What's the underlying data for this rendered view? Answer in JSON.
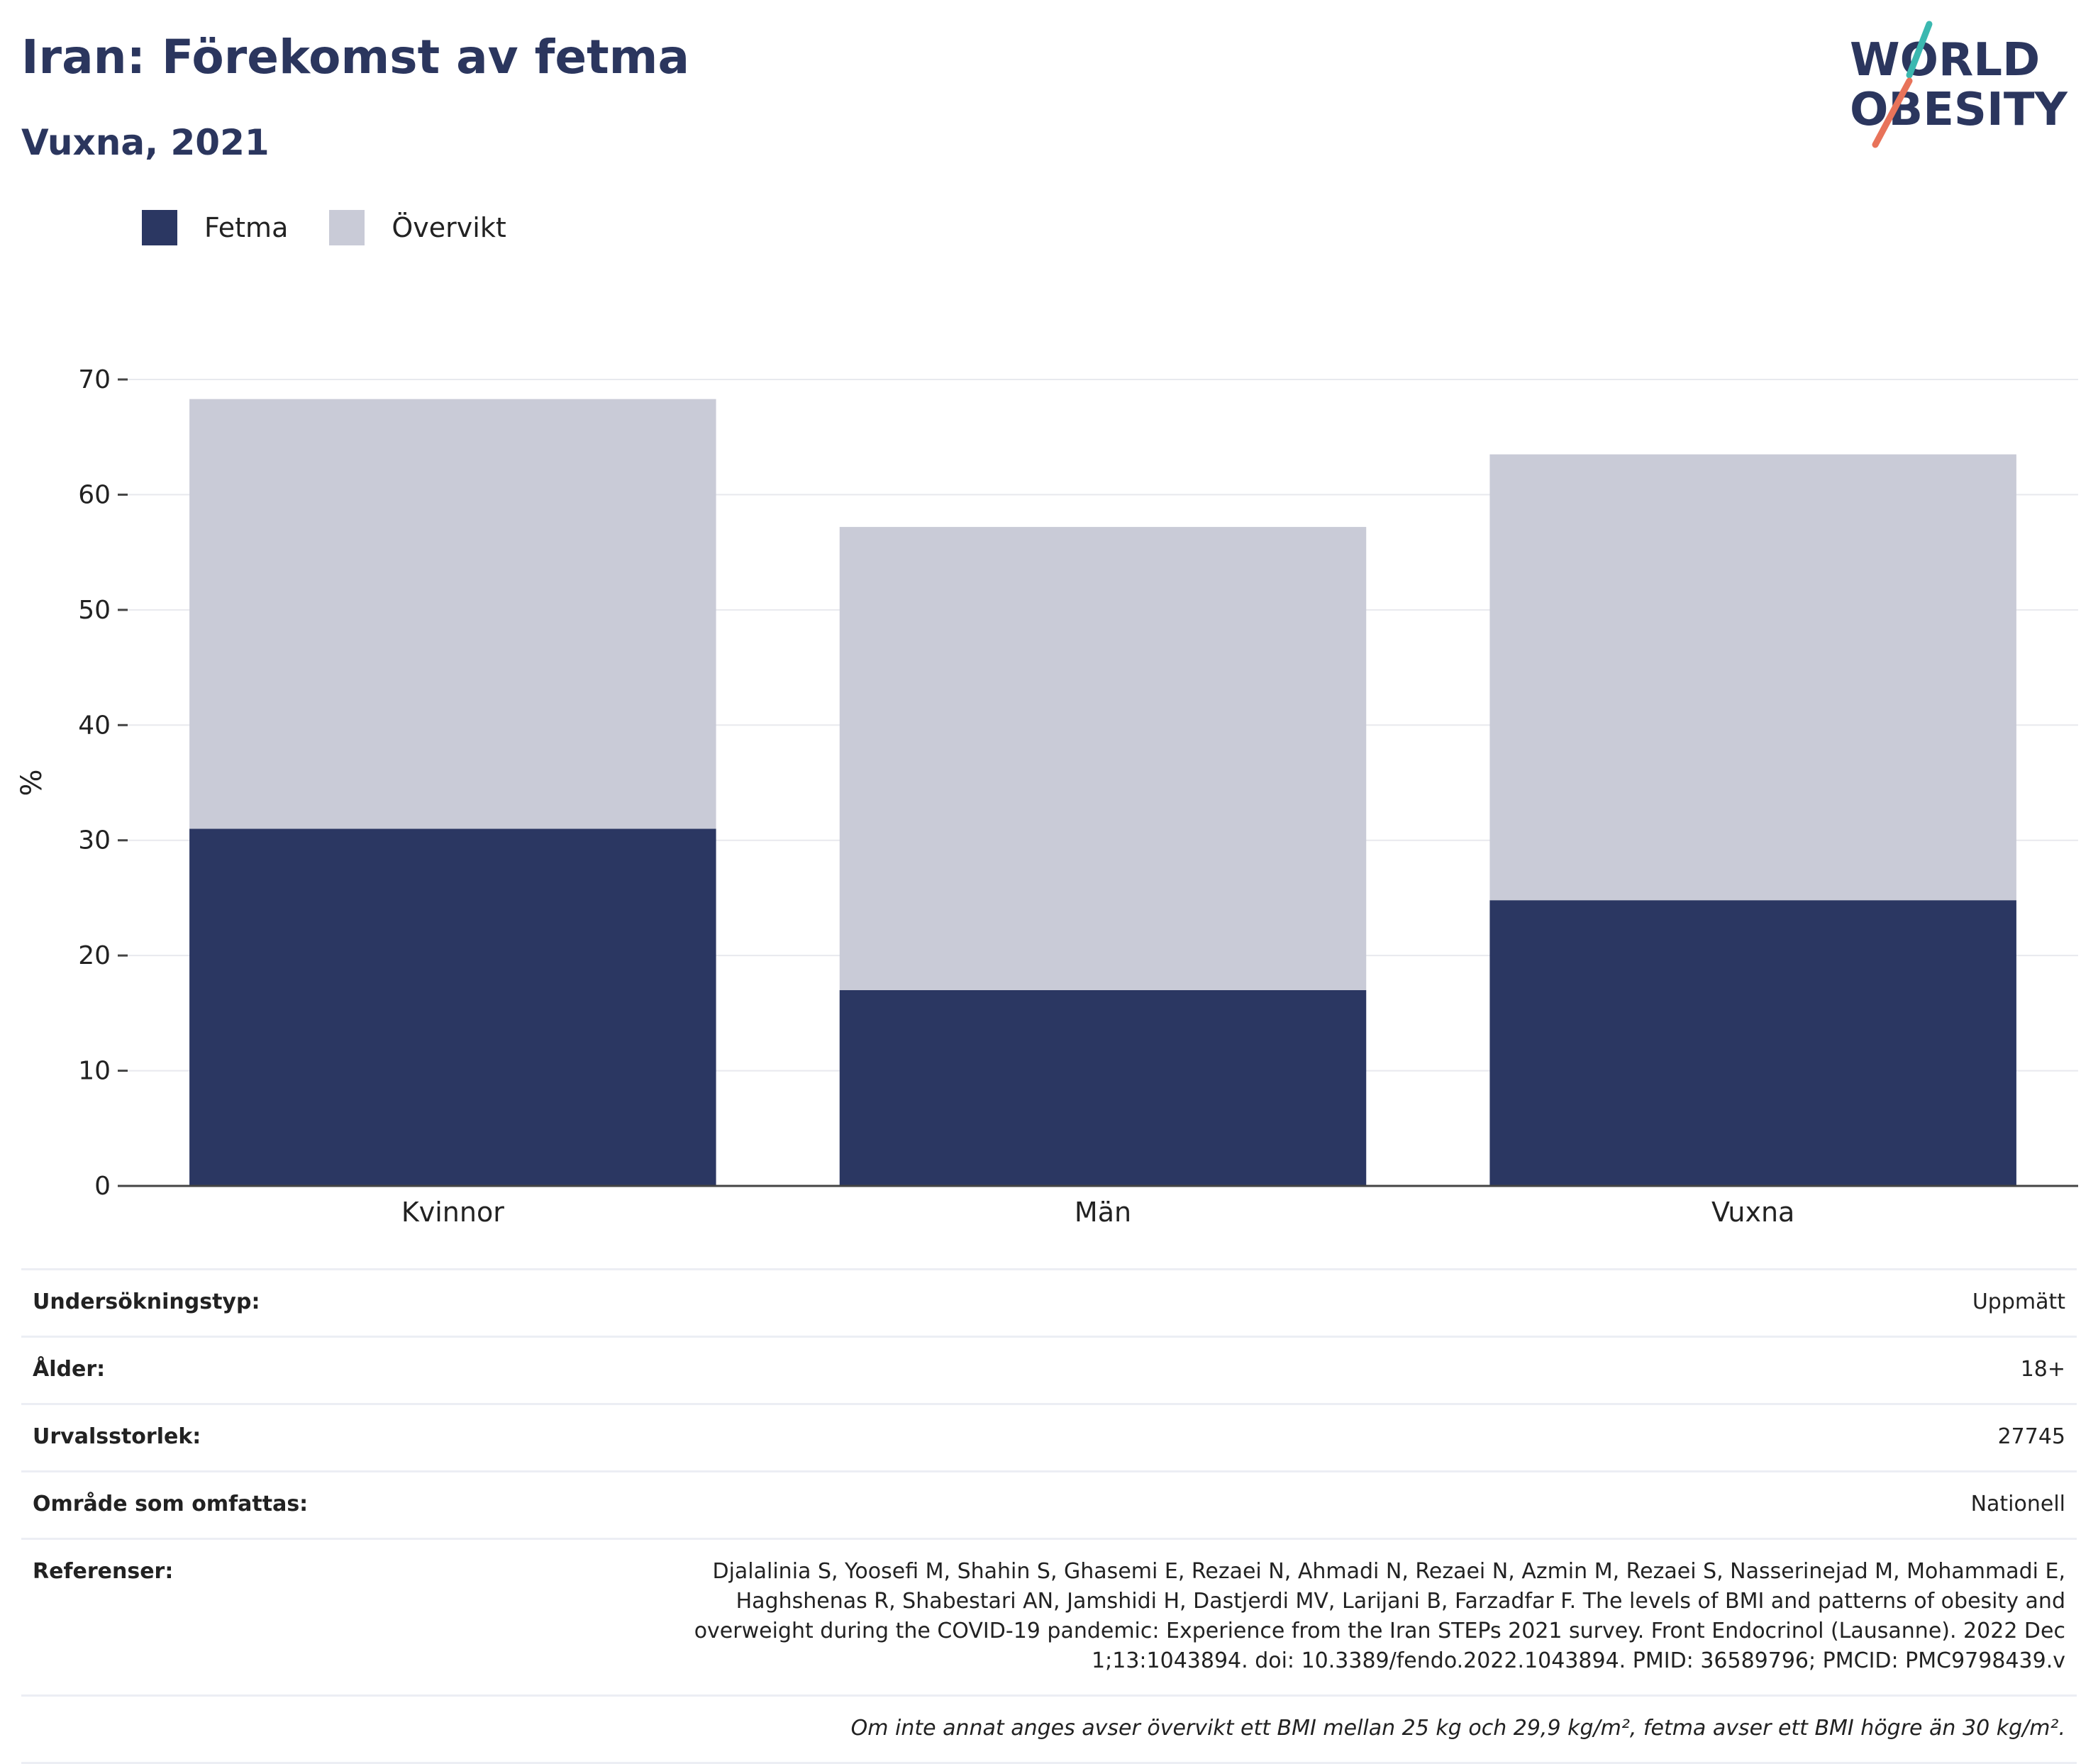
{
  "header": {
    "title": "Iran: Förekomst av fetma",
    "subtitle": "Vuxna, 2021",
    "logo_line1": "WORLD",
    "logo_line2": "OBESITY"
  },
  "legend": {
    "items": [
      {
        "label": "Fetma",
        "color": "#2b3762"
      },
      {
        "label": "Övervikt",
        "color": "#c9cbd7"
      }
    ]
  },
  "chart_data": {
    "type": "bar",
    "stacked": true,
    "categories": [
      "Kvinnor",
      "Män",
      "Vuxna"
    ],
    "series": [
      {
        "name": "Fetma",
        "values": [
          31.0,
          17.0,
          24.8
        ],
        "color": "#2b3762"
      },
      {
        "name": "Övervikt",
        "values": [
          37.3,
          40.2,
          38.7
        ],
        "color": "#c9cbd7"
      }
    ],
    "ylabel": "%",
    "ylim": [
      0,
      70
    ],
    "yticks": [
      0,
      10,
      20,
      30,
      40,
      50,
      60,
      70
    ],
    "grid": true,
    "legend_position": "top-left"
  },
  "info_table": {
    "rows": [
      {
        "key": "Undersökningstyp:",
        "value": "Uppmätt"
      },
      {
        "key": "Ålder:",
        "value": "18+"
      },
      {
        "key": "Urvalsstorlek:",
        "value": "27745"
      },
      {
        "key": "Område som omfattas:",
        "value": "Nationell"
      },
      {
        "key": "Referenser:",
        "value": "Djalalinia S, Yoosefi M, Shahin S, Ghasemi E, Rezaei N, Ahmadi N, Rezaei N, Azmin M, Rezaei S, Nasserinejad M, Mohammadi E, Haghshenas R, Shabestari AN, Jamshidi H, Dastjerdi MV, Larijani B, Farzadfar F. The levels of BMI and patterns of obesity and overweight during the COVID-19 pandemic: Experience from the Iran STEPs 2021 survey. Front Endocrinol (Lausanne). 2022 Dec 1;13:1043894. doi: 10.3389/fendo.2022.1043894. PMID: 36589796; PMCID: PMC9798439.v"
      }
    ],
    "note": "Om inte annat anges avser övervikt ett BMI mellan 25 kg och 29,9 kg/m², fetma avser ett BMI högre än 30 kg/m²."
  },
  "colors": {
    "title": "#2b365e",
    "logo_teal": "#3bb8b0",
    "logo_coral": "#e8735a"
  }
}
